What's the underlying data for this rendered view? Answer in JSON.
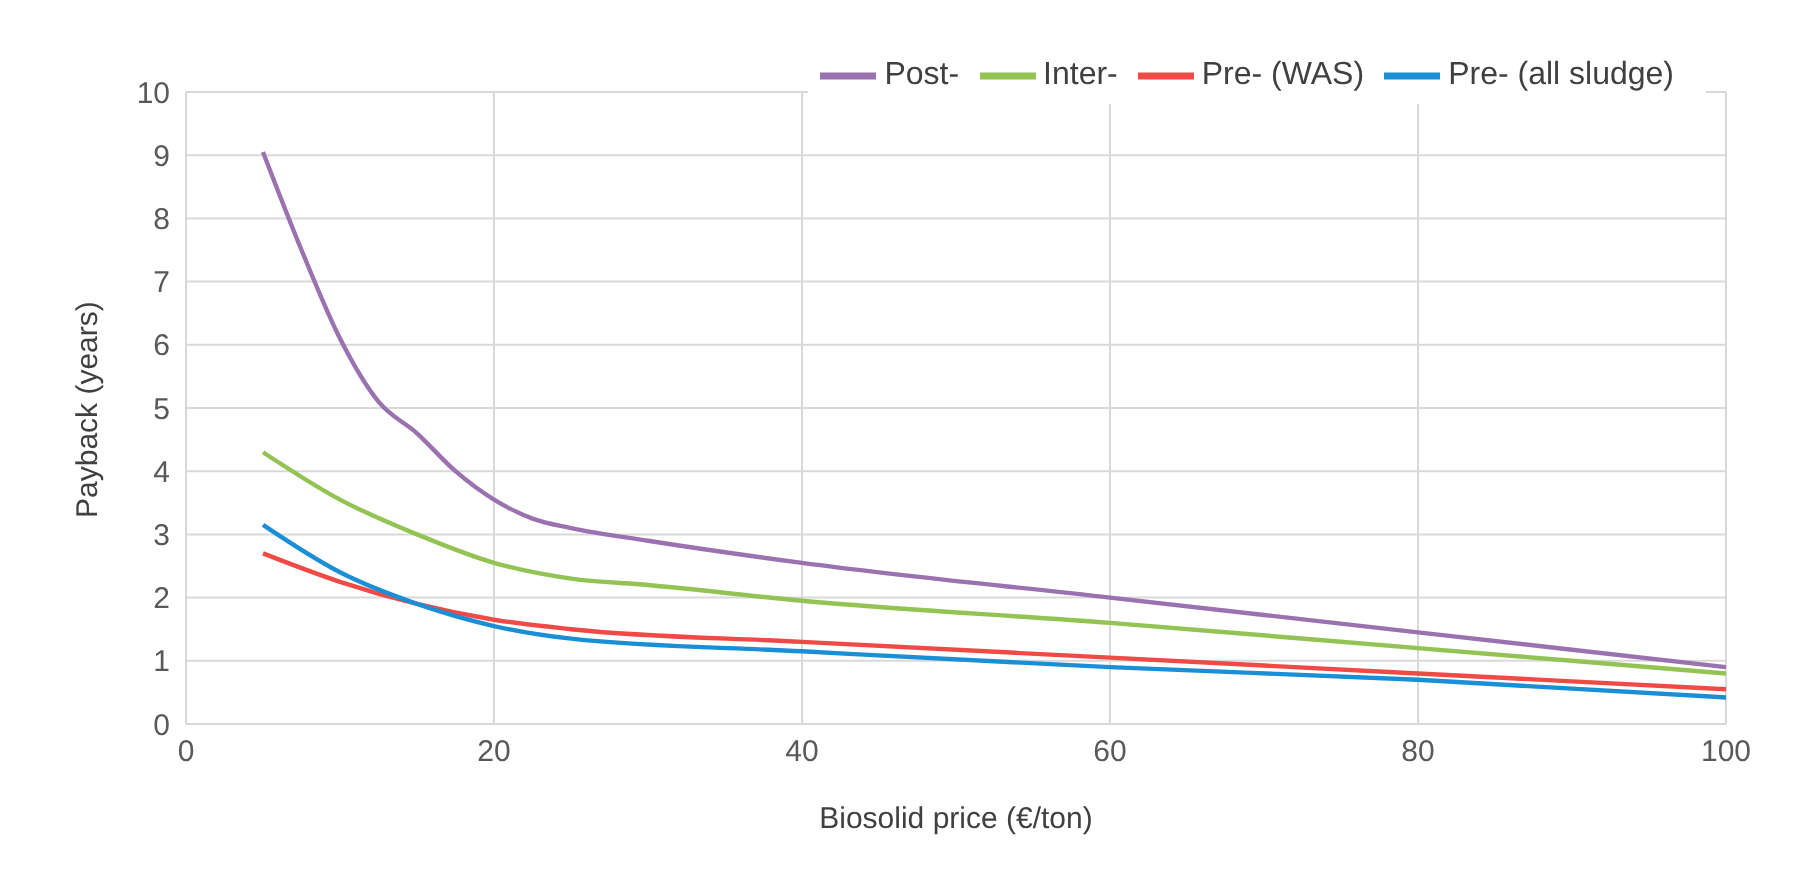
{
  "chart_data": {
    "type": "line",
    "xlabel": "Biosolid price (€/ton)",
    "ylabel": "Payback (years)",
    "xlim": [
      0,
      100
    ],
    "xticks": [
      0,
      20,
      40,
      60,
      80,
      100
    ],
    "ylim": [
      0,
      10
    ],
    "yticks": [
      0,
      1,
      2,
      3,
      4,
      5,
      6,
      7,
      8,
      9,
      10
    ],
    "grid": true,
    "legend": "top right",
    "marker": "none",
    "line_style": "solid",
    "series": [
      {
        "name": "Post-",
        "color": "#9b72b0",
        "x": [
          5,
          7.5,
          10,
          12.5,
          15,
          17.5,
          20,
          22.5,
          25,
          30,
          40,
          60,
          80,
          100
        ],
        "values": [
          9.05,
          7.5,
          6.1,
          5.1,
          4.6,
          4.0,
          3.55,
          3.25,
          3.1,
          2.9,
          2.55,
          2.0,
          1.45,
          0.9
        ]
      },
      {
        "name": "Inter-",
        "color": "#92c353",
        "x": [
          5,
          10,
          15,
          20,
          25,
          30,
          40,
          60,
          80,
          100
        ],
        "values": [
          4.3,
          3.55,
          3.0,
          2.55,
          2.3,
          2.2,
          1.95,
          1.6,
          1.2,
          0.8
        ]
      },
      {
        "name": "Pre- (WAS)",
        "color": "#ef4a45",
        "x": [
          5,
          10,
          15,
          20,
          25,
          40,
          60,
          80,
          100
        ],
        "values": [
          2.7,
          2.25,
          1.9,
          1.65,
          1.5,
          1.3,
          1.05,
          0.8,
          0.55
        ]
      },
      {
        "name": "Pre- (all sludge)",
        "color": "#1a8fd6",
        "x": [
          5,
          10,
          15,
          20,
          25,
          40,
          60,
          80,
          100
        ],
        "values": [
          3.15,
          2.4,
          1.9,
          1.55,
          1.35,
          1.15,
          0.9,
          0.7,
          0.42
        ]
      }
    ]
  }
}
